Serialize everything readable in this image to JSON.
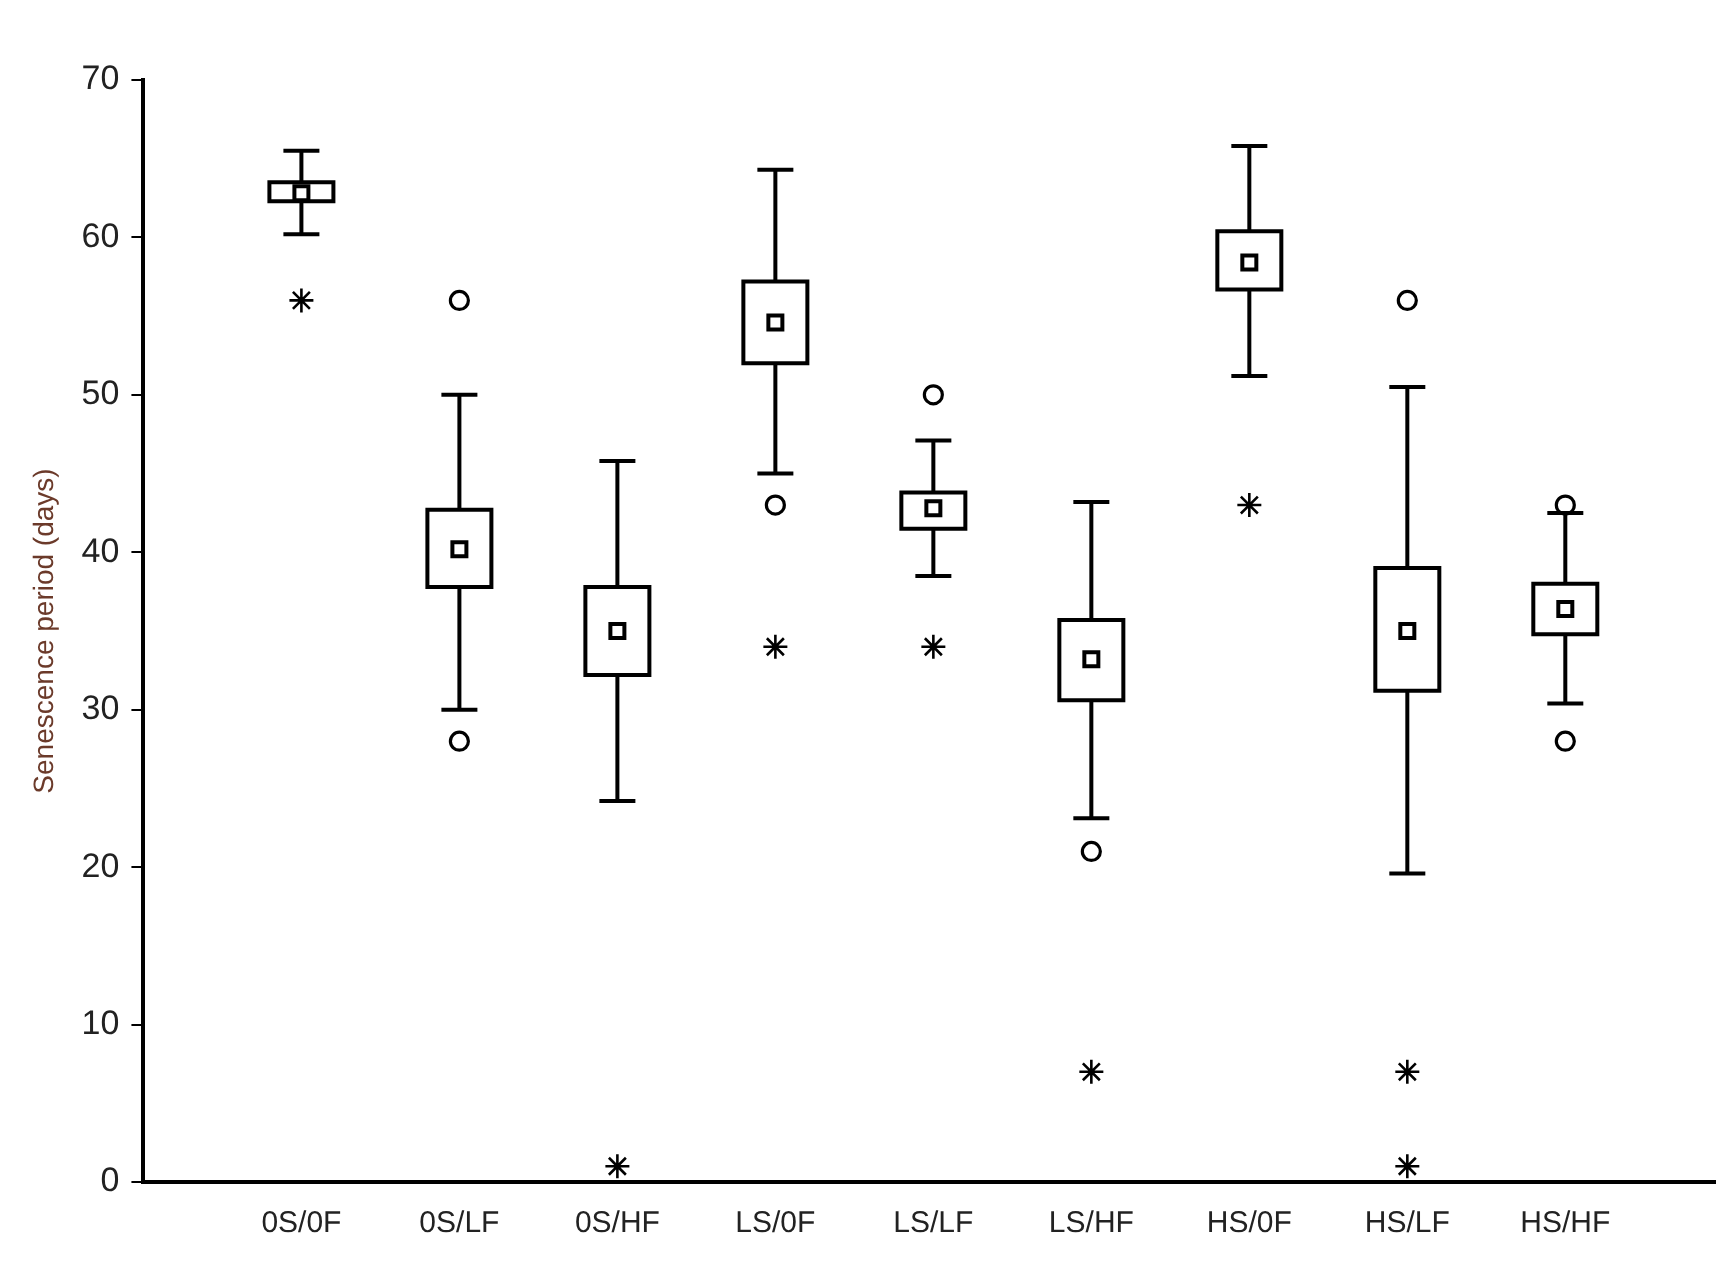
{
  "chart_data": {
    "type": "box",
    "ylabel": "Senescence period (days)",
    "color": "#000000",
    "categories": [
      "0S/0F",
      "0S/LF",
      "0S/HF",
      "LS/0F",
      "LS/LF",
      "LS/HF",
      "HS/0F",
      "HS/LF",
      "HS/HF"
    ],
    "boxes": [
      {
        "low": 60.2,
        "q1": 62.3,
        "median": 62.8,
        "q3": 63.5,
        "high": 65.5
      },
      {
        "low": 30,
        "q1": 37.8,
        "median": 40.2,
        "q3": 42.7,
        "high": 50,
        "outliers": [
          56,
          28
        ]
      },
      {
        "low": 24.2,
        "q1": 32.2,
        "median": 35,
        "q3": 37.8,
        "high": 45.8
      },
      {
        "low": 45,
        "q1": 52,
        "median": 54.6,
        "q3": 57.2,
        "high": 64.3,
        "outliers": [
          43
        ]
      },
      {
        "low": 38.5,
        "q1": 41.5,
        "median": 42.8,
        "q3": 43.8,
        "high": 47.1,
        "outliers": [
          50
        ]
      },
      {
        "low": 23.1,
        "q1": 30.6,
        "median": 33.2,
        "q3": 35.7,
        "high": 43.2,
        "outliers": [
          21
        ]
      },
      {
        "low": 51.2,
        "q1": 56.7,
        "median": 58.4,
        "q3": 60.4,
        "high": 65.8
      },
      {
        "low": 19.6,
        "q1": 31.2,
        "median": 35,
        "q3": 39,
        "high": 50.5,
        "outliers": [
          56
        ]
      },
      {
        "low": 30.4,
        "q1": 34.8,
        "median": 36.4,
        "q3": 38,
        "high": 42.5,
        "outliers": [
          43,
          28
        ]
      }
    ],
    "series": [
      {
        "type": "scatter",
        "marker": "cross",
        "color": "#000000",
        "values": [
          56,
          null,
          1,
          34,
          34,
          7,
          43,
          7,
          null
        ]
      },
      {
        "type": "scatter",
        "marker": "cross",
        "color": "#000000",
        "values": [
          null,
          null,
          null,
          null,
          null,
          null,
          null,
          1,
          null
        ]
      }
    ],
    "ylim": [
      0,
      70
    ],
    "yticks": [
      0,
      10,
      20,
      30,
      40,
      50,
      60,
      70
    ]
  }
}
